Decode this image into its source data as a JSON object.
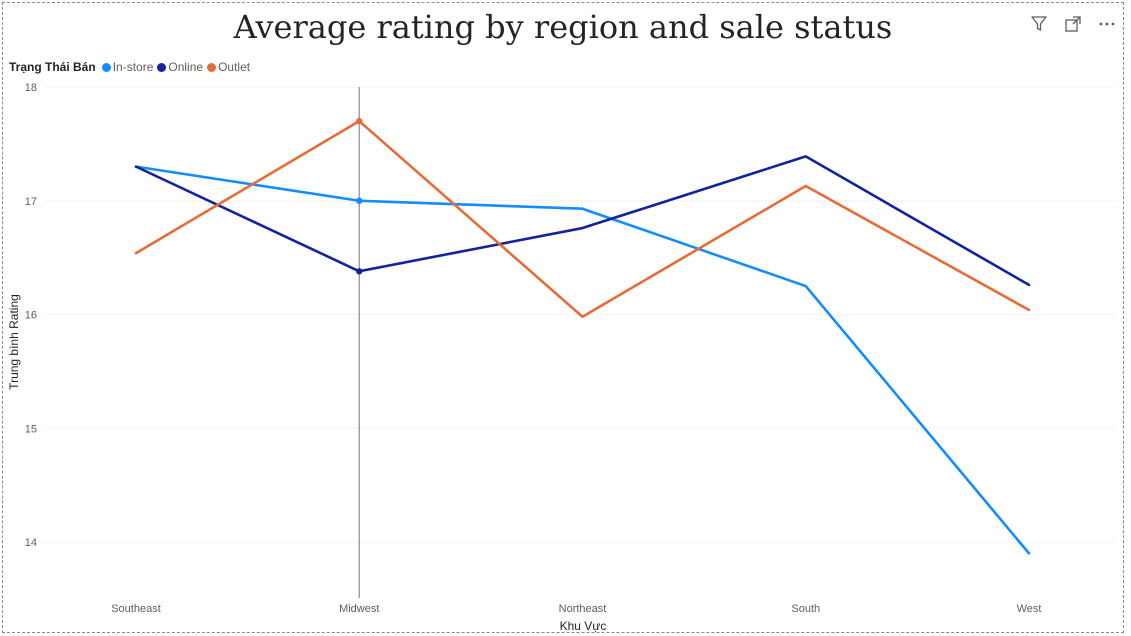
{
  "chart_data": {
    "type": "line",
    "title": "Average rating by region and sale status",
    "xlabel": "Khu Vực",
    "ylabel": "Trung bình Rating",
    "legend_title": "Trạng Thái Bán",
    "legend_position": "top-left",
    "categories": [
      "Southeast",
      "Midwest",
      "Northeast",
      "South",
      "West"
    ],
    "ylim": [
      13.5,
      18
    ],
    "yticks": [
      14,
      15,
      16,
      17,
      18
    ],
    "grid": true,
    "hover_category": "Midwest",
    "series": [
      {
        "name": "In-store",
        "color": "#118DFF",
        "values": [
          17.3,
          17.0,
          16.93,
          16.25,
          13.9
        ]
      },
      {
        "name": "Online",
        "color": "#12239E",
        "values": [
          17.3,
          16.38,
          16.76,
          17.39,
          16.26
        ]
      },
      {
        "name": "Outlet",
        "color": "#E66C37",
        "values": [
          16.54,
          17.7,
          15.98,
          17.13,
          16.04
        ]
      }
    ]
  },
  "header_icons": [
    "filter-icon",
    "focus-mode-icon",
    "more-options-icon"
  ]
}
